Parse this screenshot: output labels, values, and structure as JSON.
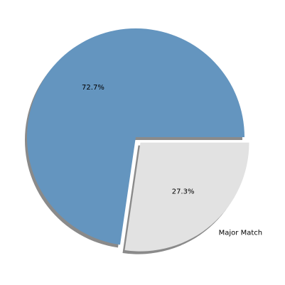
{
  "chart_data": {
    "type": "pie",
    "title": "",
    "slices": [
      {
        "label": "",
        "value": 72.7,
        "percent_label": "72.7%",
        "color": "#6495bf",
        "exploded": false
      },
      {
        "label": "Major Match",
        "value": 27.3,
        "percent_label": "27.3%",
        "color": "#e2e2e2",
        "exploded": true
      }
    ],
    "shadow": true,
    "shadow_color": "#8a8a8a",
    "start_angle_deg": 0,
    "direction": "counterclockwise",
    "legend": "none"
  }
}
